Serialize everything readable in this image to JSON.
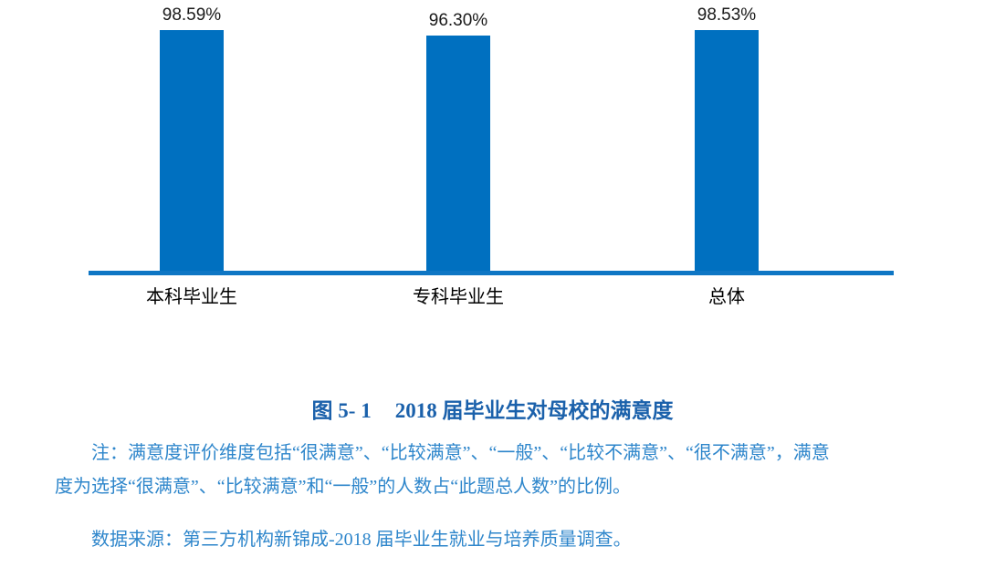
{
  "chart_data": {
    "type": "bar",
    "categories": [
      "本科毕业生",
      "专科毕业生",
      "总体"
    ],
    "values": [
      98.59,
      96.3,
      98.53
    ],
    "data_labels": [
      "98.59%",
      "96.30%",
      "98.53%"
    ],
    "title": "图 5- 1　2018 届毕业生对母校的满意度",
    "xlabel": "",
    "ylabel": "",
    "ylim": [
      0,
      100
    ],
    "grid": false,
    "legend": false,
    "bar_color": "#0070C0",
    "axis_line_color": "#0E76C4"
  },
  "figure": {
    "caption_prefix": "图 5- 1",
    "caption_text": "2018 届毕业生对母校的满意度",
    "note_lines": [
      "注：满意度评价维度包括“很满意”、“比较满意”、“一般”、“比较不满意”、“很不满意”，满意",
      "度为选择“很满意”、“比较满意”和“一般”的人数占“此题总人数”的比例。"
    ],
    "source": "数据来源：第三方机构新锦成-2018 届毕业生就业与培养质量调查。"
  },
  "colors": {
    "caption_text": "#1B61AB",
    "body_text": "#2E86CB",
    "value_label_text": "#1a1a1a",
    "category_label_text": "#000000"
  }
}
